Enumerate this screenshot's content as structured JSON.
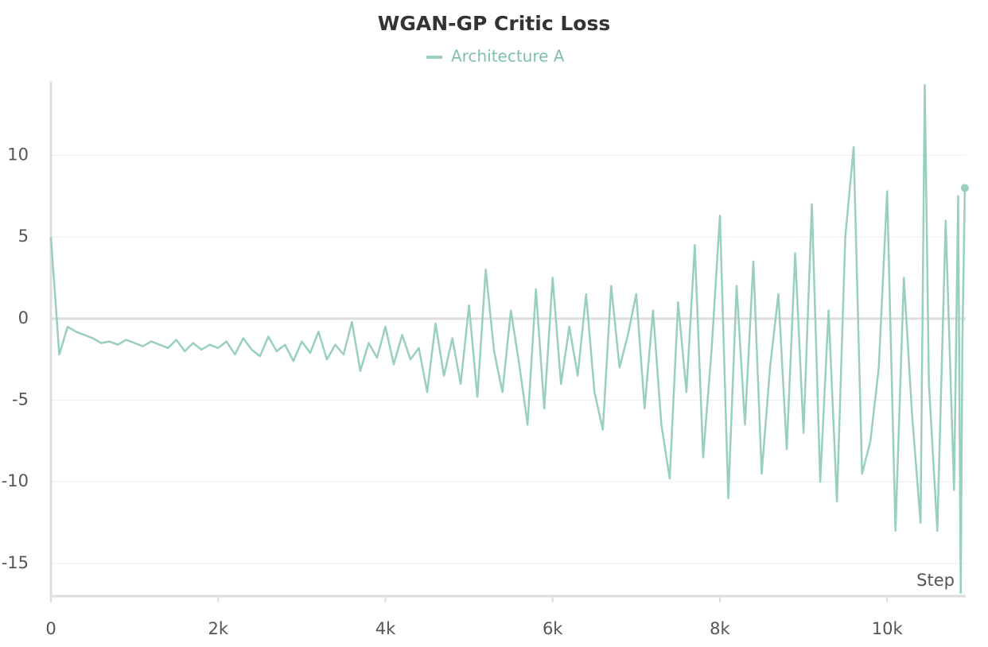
{
  "chart_data": {
    "type": "line",
    "title": "WGAN-GP Critic Loss",
    "x_label": "Step",
    "x": [
      0,
      100,
      200,
      300,
      400,
      500,
      600,
      700,
      800,
      900,
      1000,
      1100,
      1200,
      1300,
      1400,
      1500,
      1600,
      1700,
      1800,
      1900,
      2000,
      2100,
      2200,
      2300,
      2400,
      2500,
      2600,
      2700,
      2800,
      2900,
      3000,
      3100,
      3200,
      3300,
      3400,
      3500,
      3600,
      3700,
      3800,
      3900,
      4000,
      4100,
      4200,
      4300,
      4400,
      4500,
      4600,
      4700,
      4800,
      4900,
      5000,
      5100,
      5200,
      5300,
      5400,
      5500,
      5600,
      5700,
      5800,
      5900,
      6000,
      6100,
      6200,
      6300,
      6400,
      6500,
      6600,
      6700,
      6800,
      6900,
      7000,
      7100,
      7200,
      7300,
      7400,
      7500,
      7600,
      7700,
      7800,
      7900,
      8000,
      8100,
      8200,
      8300,
      8400,
      8500,
      8600,
      8700,
      8800,
      8900,
      9000,
      9100,
      9200,
      9300,
      9400,
      9500,
      9600,
      9700,
      9800,
      9900,
      10000,
      10100,
      10200,
      10300,
      10400,
      10450,
      10500,
      10600,
      10700,
      10800,
      10850,
      10880,
      10900,
      10930
    ],
    "series": [
      {
        "name": "Architecture A",
        "color": "#98cfc0",
        "values": [
          5.0,
          -2.2,
          -0.5,
          -0.8,
          -1.0,
          -1.2,
          -1.5,
          -1.4,
          -1.6,
          -1.3,
          -1.5,
          -1.7,
          -1.4,
          -1.6,
          -1.8,
          -1.3,
          -2.0,
          -1.5,
          -1.9,
          -1.6,
          -1.8,
          -1.4,
          -2.2,
          -1.2,
          -1.9,
          -2.3,
          -1.1,
          -2.0,
          -1.6,
          -2.6,
          -1.4,
          -2.1,
          -0.8,
          -2.5,
          -1.6,
          -2.2,
          -0.2,
          -3.2,
          -1.5,
          -2.4,
          -0.5,
          -2.8,
          -1.0,
          -2.5,
          -1.8,
          -4.5,
          -0.3,
          -3.5,
          -1.2,
          -4.0,
          0.8,
          -4.8,
          3.0,
          -2.0,
          -4.5,
          0.5,
          -2.8,
          -6.5,
          1.8,
          -5.5,
          2.5,
          -4.0,
          -0.5,
          -3.5,
          1.5,
          -4.5,
          -6.8,
          2.0,
          -3.0,
          -1.0,
          1.5,
          -5.5,
          0.5,
          -6.5,
          -9.8,
          1.0,
          -4.5,
          4.5,
          -8.5,
          -2.0,
          6.3,
          -11.0,
          2.0,
          -6.5,
          3.5,
          -9.5,
          -3.0,
          1.5,
          -8.0,
          4.0,
          -7.0,
          7.0,
          -10.0,
          0.5,
          -11.2,
          5.0,
          10.5,
          -9.5,
          -7.5,
          -3.0,
          7.8,
          -13.0,
          2.5,
          -6.0,
          -12.5,
          14.3,
          -4.0,
          -13.0,
          6.0,
          -10.5,
          7.5,
          -16.8,
          -1.5,
          8.0
        ]
      }
    ],
    "xlim": [
      0,
      10940
    ],
    "ylim": [
      -17,
      14.5
    ],
    "xticks": [
      0,
      {
        "value": 2000,
        "label": "2k"
      },
      {
        "value": 4000,
        "label": "4k"
      },
      {
        "value": 6000,
        "label": "6k"
      },
      {
        "value": 8000,
        "label": "8k"
      },
      {
        "value": 10000,
        "label": "10k"
      }
    ],
    "yticks": [
      -15,
      -10,
      -5,
      0,
      5,
      10
    ],
    "grid": true
  }
}
